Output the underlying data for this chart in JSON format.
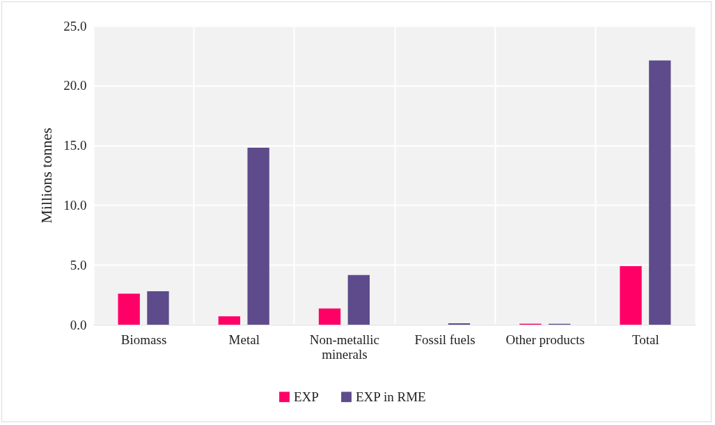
{
  "chart_data": {
    "type": "bar",
    "ylabel": "Millions tonnes",
    "categories": [
      "Biomass",
      "Metal",
      "Non-metallic minerals",
      "Fossil fuels",
      "Other products",
      "Total"
    ],
    "series": [
      {
        "name": "EXP",
        "color": "#ff0066",
        "values": [
          2.6,
          0.7,
          1.35,
          0.0,
          0.08,
          4.9
        ]
      },
      {
        "name": "EXP in RME",
        "color": "#5e4b8b",
        "values": [
          2.8,
          14.8,
          4.15,
          0.12,
          0.08,
          22.1
        ]
      }
    ],
    "ylim": [
      0,
      25
    ],
    "yticks": [
      {
        "value": 0,
        "label": "0.0"
      },
      {
        "value": 5,
        "label": "5.0"
      },
      {
        "value": 10,
        "label": "10.0"
      },
      {
        "value": 15,
        "label": "15.0"
      },
      {
        "value": 20,
        "label": "20.0"
      },
      {
        "value": 25,
        "label": "25.0"
      }
    ],
    "grid": true,
    "legend": "bottom"
  }
}
